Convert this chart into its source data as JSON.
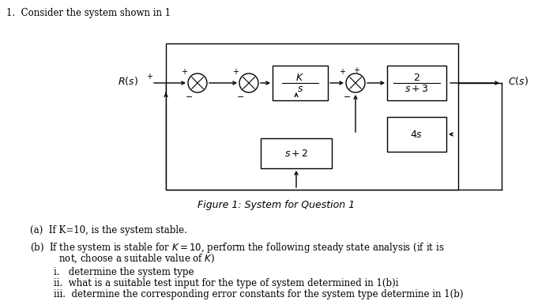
{
  "title": "1.  Consider the system shown in 1",
  "caption": "Figure 1: System for Question 1",
  "q_a": "(a)  If K=10, is the system stable.",
  "q_b1": "(b)  If the system is stable for $K = 10$, perform the following steady state analysis (if it is",
  "q_b2": "      not, choose a suitable value of $K$)",
  "q_i": "i.   determine the system type",
  "q_ii": "ii.  what is a suitable test input for the type of system determined in 1(b)i",
  "q_iii": "iii.  determine the corresponding error constants for the system type determine in 1(b)",
  "bg": "#ffffff",
  "lw": 1.0
}
